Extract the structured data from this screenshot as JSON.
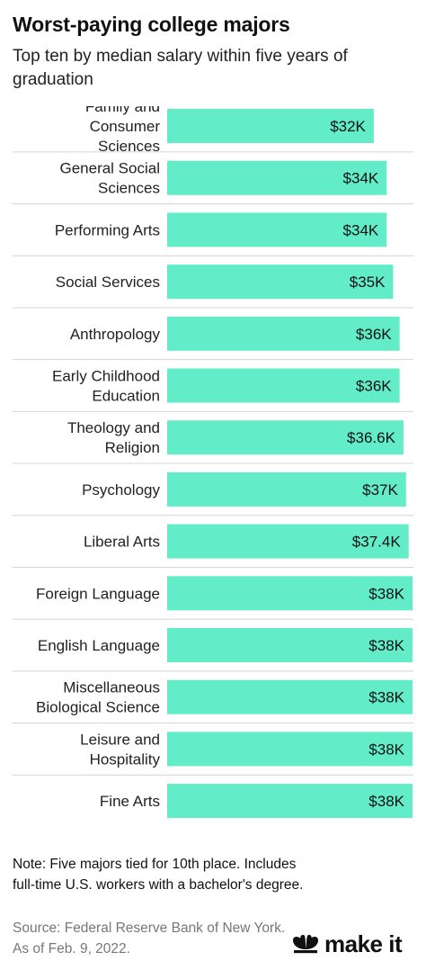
{
  "title": "Worst-paying college majors",
  "subtitle": "Top ten by median salary within five years of graduation",
  "note": "Note: Five majors tied for 10th place. Includes full-time U.S. workers with a bachelor's degree.",
  "source": "Source: Federal Reserve Bank of New York. As of Feb. 9, 2022.",
  "logo": {
    "text": "make it",
    "icon": "cnbc-peacock-icon"
  },
  "colors": {
    "bar": "#62ecc8",
    "divider": "#d4d4d4",
    "text": "#222222"
  },
  "chart_data": {
    "type": "bar",
    "orientation": "horizontal",
    "categories": [
      [
        "Family and",
        "Consumer",
        "Sciences"
      ],
      [
        "General Social",
        "Sciences"
      ],
      [
        "Performing Arts"
      ],
      [
        "Social Services"
      ],
      [
        "Anthropology"
      ],
      [
        "Early Childhood",
        "Education"
      ],
      [
        "Theology and",
        "Religion"
      ],
      [
        "Psychology"
      ],
      [
        "Liberal Arts"
      ],
      [
        "Foreign Language"
      ],
      [
        "English Language"
      ],
      [
        "Miscellaneous",
        "Biological Science"
      ],
      [
        "Leisure and",
        "Hospitality"
      ],
      [
        "Fine Arts"
      ]
    ],
    "values": [
      32000,
      34000,
      34000,
      35000,
      36000,
      36000,
      36600,
      37000,
      37400,
      38000,
      38000,
      38000,
      38000,
      38000
    ],
    "value_labels": [
      "$32K",
      "$34K",
      "$34K",
      "$35K",
      "$36K",
      "$36K",
      "$36.6K",
      "$37K",
      "$37.4K",
      "$38K",
      "$38K",
      "$38K",
      "$38K",
      "$38K"
    ],
    "xlim": [
      0,
      38000
    ],
    "grid": false,
    "legend": "none"
  }
}
